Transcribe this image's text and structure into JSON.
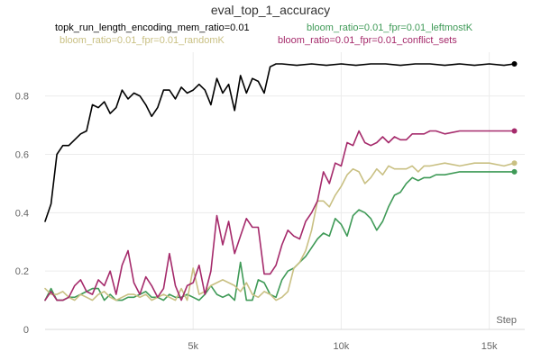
{
  "chart_data": {
    "type": "line",
    "title": "eval_top_1_accuracy",
    "xlabel": "Step",
    "ylabel": "",
    "xlim": [
      0,
      16200
    ],
    "ylim": [
      0,
      0.95
    ],
    "x_ticks": [
      {
        "value": 5000,
        "label": "5k"
      },
      {
        "value": 10000,
        "label": "10k"
      },
      {
        "value": 15000,
        "label": "15k"
      }
    ],
    "y_ticks": [
      {
        "value": 0,
        "label": "0"
      },
      {
        "value": 0.2,
        "label": "0.2"
      },
      {
        "value": 0.4,
        "label": "0.4"
      },
      {
        "value": 0.6,
        "label": "0.6"
      },
      {
        "value": 0.8,
        "label": "0.8"
      }
    ],
    "grid": true,
    "legend_position": "top",
    "series": [
      {
        "name": "topk_run_length_encoding_mem_ratio=0.01",
        "color": "#000000",
        "points": [
          [
            0,
            0.37
          ],
          [
            200,
            0.43
          ],
          [
            400,
            0.6
          ],
          [
            600,
            0.63
          ],
          [
            800,
            0.63
          ],
          [
            1000,
            0.65
          ],
          [
            1200,
            0.67
          ],
          [
            1400,
            0.68
          ],
          [
            1600,
            0.77
          ],
          [
            1800,
            0.76
          ],
          [
            2000,
            0.78
          ],
          [
            2200,
            0.74
          ],
          [
            2400,
            0.76
          ],
          [
            2600,
            0.82
          ],
          [
            2800,
            0.79
          ],
          [
            3000,
            0.81
          ],
          [
            3200,
            0.8
          ],
          [
            3400,
            0.77
          ],
          [
            3600,
            0.73
          ],
          [
            3800,
            0.76
          ],
          [
            4000,
            0.82
          ],
          [
            4200,
            0.82
          ],
          [
            4400,
            0.79
          ],
          [
            4600,
            0.83
          ],
          [
            4800,
            0.81
          ],
          [
            5000,
            0.82
          ],
          [
            5200,
            0.84
          ],
          [
            5400,
            0.82
          ],
          [
            5600,
            0.77
          ],
          [
            5800,
            0.86
          ],
          [
            6000,
            0.81
          ],
          [
            6200,
            0.84
          ],
          [
            6400,
            0.75
          ],
          [
            6600,
            0.87
          ],
          [
            6800,
            0.81
          ],
          [
            7000,
            0.86
          ],
          [
            7200,
            0.85
          ],
          [
            7400,
            0.81
          ],
          [
            7600,
            0.9
          ],
          [
            7800,
            0.91
          ],
          [
            8000,
            0.91
          ],
          [
            8500,
            0.905
          ],
          [
            9000,
            0.91
          ],
          [
            9500,
            0.905
          ],
          [
            10000,
            0.91
          ],
          [
            10500,
            0.905
          ],
          [
            11000,
            0.91
          ],
          [
            11500,
            0.91
          ],
          [
            12000,
            0.905
          ],
          [
            12500,
            0.91
          ],
          [
            13000,
            0.91
          ],
          [
            13500,
            0.905
          ],
          [
            14000,
            0.91
          ],
          [
            14500,
            0.905
          ],
          [
            15000,
            0.91
          ],
          [
            15500,
            0.905
          ],
          [
            15850,
            0.91
          ]
        ]
      },
      {
        "name": "bloom_ratio=0.01_fpr=0.01_leftmostK",
        "color": "#3f9a57",
        "points": [
          [
            0,
            0.1
          ],
          [
            200,
            0.14
          ],
          [
            400,
            0.1
          ],
          [
            600,
            0.1
          ],
          [
            800,
            0.11
          ],
          [
            1000,
            0.11
          ],
          [
            1200,
            0.12
          ],
          [
            1400,
            0.13
          ],
          [
            1600,
            0.14
          ],
          [
            1800,
            0.14
          ],
          [
            2000,
            0.1
          ],
          [
            2200,
            0.12
          ],
          [
            2400,
            0.1
          ],
          [
            2600,
            0.1
          ],
          [
            2800,
            0.11
          ],
          [
            3000,
            0.11
          ],
          [
            3200,
            0.12
          ],
          [
            3400,
            0.13
          ],
          [
            3600,
            0.11
          ],
          [
            3800,
            0.11
          ],
          [
            4000,
            0.1
          ],
          [
            4200,
            0.12
          ],
          [
            4400,
            0.11
          ],
          [
            4600,
            0.11
          ],
          [
            4800,
            0.12
          ],
          [
            5000,
            0.11
          ],
          [
            5200,
            0.1
          ],
          [
            5400,
            0.12
          ],
          [
            5600,
            0.15
          ],
          [
            5800,
            0.12
          ],
          [
            6000,
            0.11
          ],
          [
            6200,
            0.12
          ],
          [
            6400,
            0.1
          ],
          [
            6600,
            0.23
          ],
          [
            6800,
            0.1
          ],
          [
            7000,
            0.1
          ],
          [
            7200,
            0.17
          ],
          [
            7400,
            0.16
          ],
          [
            7600,
            0.12
          ],
          [
            7800,
            0.11
          ],
          [
            8000,
            0.17
          ],
          [
            8200,
            0.2
          ],
          [
            8400,
            0.21
          ],
          [
            8600,
            0.23
          ],
          [
            8800,
            0.25
          ],
          [
            9000,
            0.28
          ],
          [
            9200,
            0.31
          ],
          [
            9400,
            0.33
          ],
          [
            9600,
            0.32
          ],
          [
            9800,
            0.38
          ],
          [
            10000,
            0.36
          ],
          [
            10200,
            0.32
          ],
          [
            10400,
            0.39
          ],
          [
            10600,
            0.41
          ],
          [
            10800,
            0.4
          ],
          [
            11000,
            0.38
          ],
          [
            11200,
            0.34
          ],
          [
            11400,
            0.37
          ],
          [
            11600,
            0.42
          ],
          [
            11800,
            0.46
          ],
          [
            12000,
            0.47
          ],
          [
            12200,
            0.5
          ],
          [
            12400,
            0.52
          ],
          [
            12600,
            0.51
          ],
          [
            12800,
            0.52
          ],
          [
            13000,
            0.52
          ],
          [
            13200,
            0.53
          ],
          [
            13500,
            0.53
          ],
          [
            14000,
            0.54
          ],
          [
            14500,
            0.54
          ],
          [
            15000,
            0.54
          ],
          [
            15500,
            0.54
          ],
          [
            15850,
            0.54
          ]
        ]
      },
      {
        "name": "bloom_ratio=0.01_fpr=0.01_randomK",
        "color": "#c9c083",
        "points": [
          [
            0,
            0.14
          ],
          [
            200,
            0.12
          ],
          [
            400,
            0.12
          ],
          [
            600,
            0.13
          ],
          [
            800,
            0.11
          ],
          [
            1000,
            0.1
          ],
          [
            1200,
            0.12
          ],
          [
            1400,
            0.11
          ],
          [
            1600,
            0.1
          ],
          [
            1800,
            0.12
          ],
          [
            2000,
            0.13
          ],
          [
            2200,
            0.11
          ],
          [
            2400,
            0.1
          ],
          [
            2600,
            0.11
          ],
          [
            2800,
            0.12
          ],
          [
            3000,
            0.12
          ],
          [
            3200,
            0.11
          ],
          [
            3400,
            0.12
          ],
          [
            3600,
            0.1
          ],
          [
            3800,
            0.11
          ],
          [
            4000,
            0.12
          ],
          [
            4200,
            0.11
          ],
          [
            4400,
            0.1
          ],
          [
            4600,
            0.14
          ],
          [
            4800,
            0.1
          ],
          [
            5000,
            0.21
          ],
          [
            5200,
            0.12
          ],
          [
            5400,
            0.13
          ],
          [
            5600,
            0.15
          ],
          [
            5800,
            0.16
          ],
          [
            6000,
            0.17
          ],
          [
            6200,
            0.16
          ],
          [
            6400,
            0.15
          ],
          [
            6600,
            0.13
          ],
          [
            6800,
            0.16
          ],
          [
            7000,
            0.12
          ],
          [
            7200,
            0.11
          ],
          [
            7400,
            0.13
          ],
          [
            7600,
            0.12
          ],
          [
            7800,
            0.1
          ],
          [
            8000,
            0.11
          ],
          [
            8200,
            0.13
          ],
          [
            8400,
            0.21
          ],
          [
            8600,
            0.23
          ],
          [
            8800,
            0.27
          ],
          [
            9000,
            0.34
          ],
          [
            9200,
            0.44
          ],
          [
            9400,
            0.44
          ],
          [
            9600,
            0.42
          ],
          [
            9800,
            0.46
          ],
          [
            10000,
            0.49
          ],
          [
            10200,
            0.53
          ],
          [
            10400,
            0.55
          ],
          [
            10600,
            0.54
          ],
          [
            10800,
            0.5
          ],
          [
            11000,
            0.52
          ],
          [
            11200,
            0.55
          ],
          [
            11400,
            0.53
          ],
          [
            11600,
            0.56
          ],
          [
            11800,
            0.55
          ],
          [
            12000,
            0.55
          ],
          [
            12200,
            0.55
          ],
          [
            12400,
            0.56
          ],
          [
            12600,
            0.54
          ],
          [
            12800,
            0.56
          ],
          [
            13000,
            0.56
          ],
          [
            13500,
            0.57
          ],
          [
            14000,
            0.56
          ],
          [
            14500,
            0.57
          ],
          [
            15000,
            0.57
          ],
          [
            15500,
            0.56
          ],
          [
            15850,
            0.57
          ]
        ]
      },
      {
        "name": "bloom_ratio=0.01_fpr=0.01_conflict_sets",
        "color": "#a52a6b",
        "points": [
          [
            0,
            0.1
          ],
          [
            200,
            0.13
          ],
          [
            400,
            0.1
          ],
          [
            600,
            0.1
          ],
          [
            800,
            0.11
          ],
          [
            1000,
            0.15
          ],
          [
            1200,
            0.17
          ],
          [
            1400,
            0.13
          ],
          [
            1600,
            0.12
          ],
          [
            1800,
            0.17
          ],
          [
            2000,
            0.15
          ],
          [
            2200,
            0.2
          ],
          [
            2400,
            0.12
          ],
          [
            2600,
            0.22
          ],
          [
            2800,
            0.27
          ],
          [
            3000,
            0.16
          ],
          [
            3200,
            0.12
          ],
          [
            3400,
            0.18
          ],
          [
            3600,
            0.15
          ],
          [
            3800,
            0.11
          ],
          [
            4000,
            0.14
          ],
          [
            4200,
            0.26
          ],
          [
            4400,
            0.15
          ],
          [
            4600,
            0.1
          ],
          [
            4800,
            0.15
          ],
          [
            5000,
            0.16
          ],
          [
            5200,
            0.22
          ],
          [
            5400,
            0.12
          ],
          [
            5600,
            0.2
          ],
          [
            5800,
            0.39
          ],
          [
            6000,
            0.29
          ],
          [
            6200,
            0.37
          ],
          [
            6400,
            0.26
          ],
          [
            6600,
            0.32
          ],
          [
            6800,
            0.38
          ],
          [
            7000,
            0.35
          ],
          [
            7200,
            0.35
          ],
          [
            7400,
            0.19
          ],
          [
            7600,
            0.19
          ],
          [
            7800,
            0.22
          ],
          [
            8000,
            0.29
          ],
          [
            8200,
            0.34
          ],
          [
            8400,
            0.32
          ],
          [
            8600,
            0.31
          ],
          [
            8800,
            0.37
          ],
          [
            9000,
            0.4
          ],
          [
            9200,
            0.44
          ],
          [
            9400,
            0.54
          ],
          [
            9600,
            0.5
          ],
          [
            9800,
            0.57
          ],
          [
            10000,
            0.56
          ],
          [
            10200,
            0.64
          ],
          [
            10400,
            0.63
          ],
          [
            10600,
            0.68
          ],
          [
            10800,
            0.64
          ],
          [
            11000,
            0.63
          ],
          [
            11200,
            0.64
          ],
          [
            11400,
            0.66
          ],
          [
            11600,
            0.64
          ],
          [
            11800,
            0.66
          ],
          [
            12000,
            0.65
          ],
          [
            12200,
            0.65
          ],
          [
            12400,
            0.67
          ],
          [
            12600,
            0.67
          ],
          [
            12800,
            0.67
          ],
          [
            13000,
            0.68
          ],
          [
            13200,
            0.68
          ],
          [
            13500,
            0.67
          ],
          [
            14000,
            0.68
          ],
          [
            14500,
            0.68
          ],
          [
            15000,
            0.68
          ],
          [
            15500,
            0.68
          ],
          [
            15850,
            0.68
          ]
        ]
      }
    ]
  }
}
